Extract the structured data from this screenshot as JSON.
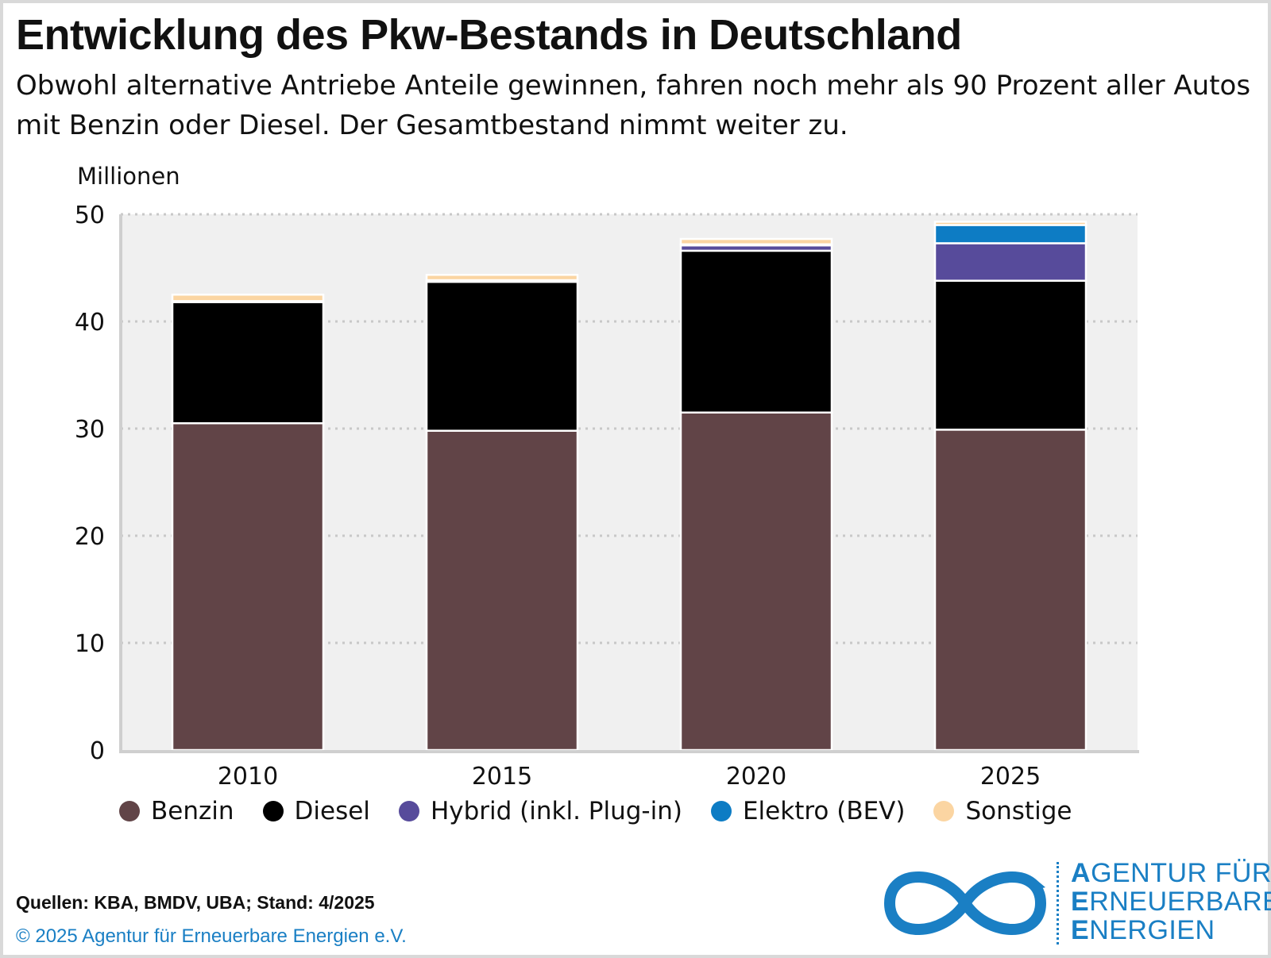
{
  "title": "Entwicklung des Pkw-Bestands in Deutschland",
  "subtitle": "Obwohl alternative Antriebe Anteile gewinnen, fahren noch mehr als 90 Prozent aller Autos mit Benzin oder Diesel. Der Gesamtbestand nimmt weiter zu.",
  "colors": {
    "benzin": "#614447",
    "diesel": "#000000",
    "hybrid": "#574b9b",
    "elektro": "#0d7cc4",
    "sonstige": "#fbd5a2",
    "plot_background": "#f0f0f0",
    "brand_blue": "#1a7fc4"
  },
  "chart_data": {
    "type": "bar",
    "stacked": true,
    "ylabel": "Millionen",
    "ylim": [
      0,
      50
    ],
    "yticks": [
      0,
      10,
      20,
      30,
      40,
      50
    ],
    "grid": true,
    "legend_position": "bottom",
    "categories": [
      "2010",
      "2015",
      "2020",
      "2025"
    ],
    "series": [
      {
        "name": "Benzin",
        "color": "#614447",
        "values": [
          30.5,
          29.8,
          31.5,
          29.9
        ]
      },
      {
        "name": "Diesel",
        "color": "#000000",
        "values": [
          11.3,
          13.9,
          15.1,
          13.9
        ]
      },
      {
        "name": "Hybrid (inkl. Plug-in)",
        "color": "#574b9b",
        "values": [
          0.1,
          0.1,
          0.5,
          3.5
        ]
      },
      {
        "name": "Elektro (BEV)",
        "color": "#0d7cc4",
        "values": [
          0.0,
          0.05,
          0.1,
          1.7
        ]
      },
      {
        "name": "Sonstige",
        "color": "#fbd5a2",
        "values": [
          0.6,
          0.5,
          0.5,
          0.3
        ]
      }
    ]
  },
  "legend": {
    "items": [
      "Benzin",
      "Diesel",
      "Hybrid (inkl. Plug-in)",
      "Elektro (BEV)",
      "Sonstige"
    ]
  },
  "source": "Quellen: KBA, BMDV, UBA; Stand: 4/2025",
  "copyright": "© 2025 Agentur für Erneuerbare Energien e.V.",
  "logo": {
    "line1_initial": "A",
    "line1_rest": "GENTUR FÜR",
    "line2_initial": "E",
    "line2_rest": "RNEUERBARE",
    "line3_initial": "E",
    "line3_rest": "NERGIEN"
  }
}
